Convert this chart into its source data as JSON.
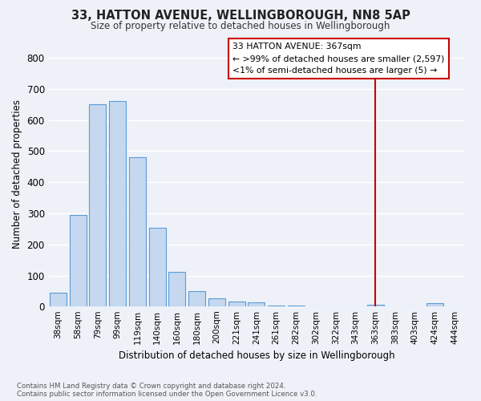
{
  "title": "33, HATTON AVENUE, WELLINGBOROUGH, NN8 5AP",
  "subtitle": "Size of property relative to detached houses in Wellingborough",
  "xlabel": "Distribution of detached houses by size in Wellingborough",
  "ylabel": "Number of detached properties",
  "categories": [
    "38sqm",
    "58sqm",
    "79sqm",
    "99sqm",
    "119sqm",
    "140sqm",
    "160sqm",
    "180sqm",
    "200sqm",
    "221sqm",
    "241sqm",
    "261sqm",
    "282sqm",
    "302sqm",
    "322sqm",
    "343sqm",
    "363sqm",
    "383sqm",
    "403sqm",
    "424sqm",
    "444sqm"
  ],
  "values": [
    46,
    295,
    651,
    660,
    480,
    253,
    113,
    50,
    27,
    17,
    15,
    4,
    3,
    2,
    1,
    1,
    7,
    1,
    0,
    10,
    0
  ],
  "bar_color": "#c5d8f0",
  "bar_edge_color": "#5b9bd5",
  "background_color": "#eef2f8",
  "grid_color": "#ffffff",
  "property_line_x": 16,
  "property_line_color": "#cc0000",
  "annotation_line1": "33 HATTON AVENUE: 367sqm",
  "annotation_line2": "← >99% of detached houses are smaller (2,597)",
  "annotation_line3": "<1% of semi-detached houses are larger (5) →",
  "annotation_box_color": "#cc0000",
  "footer_text": "Contains HM Land Registry data © Crown copyright and database right 2024.\nContains public sector information licensed under the Open Government Licence v3.0.",
  "ylim": [
    0,
    850
  ],
  "yticks": [
    0,
    100,
    200,
    300,
    400,
    500,
    600,
    700,
    800
  ]
}
